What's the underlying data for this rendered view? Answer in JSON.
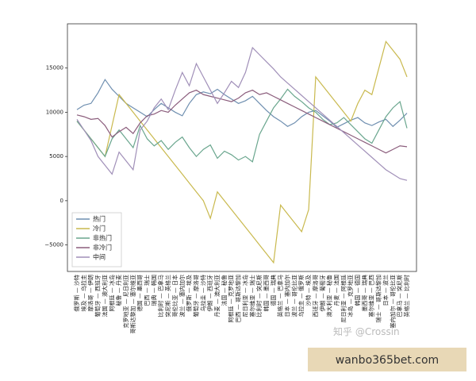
{
  "chart_data": {
    "type": "line",
    "categories": [
      "俄罗斯 — 沙特",
      "埃及 — 乌拉圭",
      "摩洛哥 — 伊朗",
      "葡萄牙 — 西班牙",
      "法国 — 澳大利亚",
      "阿根廷 — 冰岛",
      "秘鲁 — 丹麦",
      "克罗地亚 — 尼日利亚",
      "哥斯达黎加 — 塞尔维亚",
      "德国 — 墨西哥",
      "巴西 — 瑞士",
      "瑞典 — 韩国",
      "比利时 — 巴拿马",
      "突尼斯 — 英格兰",
      "哥伦比亚 — 日本",
      "波兰 — 塞内加尔",
      "俄罗斯 — 埃及",
      "葡萄牙 — 摩洛哥",
      "乌拉圭 — 沙特",
      "伊朗 — 西班牙",
      "丹麦 — 澳大利亚",
      "法国 — 秘鲁",
      "阿根廷 — 克罗地亚",
      "巴西 — 哥斯达黎加",
      "尼日利亚 — 冰岛",
      "塞尔维亚 — 瑞士",
      "比利时 — 突尼斯",
      "韩国 — 墨西哥",
      "德国 — 瑞典",
      "英格兰 — 巴拿马",
      "日本 — 塞内加尔",
      "波兰 — 哥伦比亚",
      "乌拉圭 — 俄罗斯",
      "沙特 — 埃及",
      "西班牙 — 摩洛哥",
      "伊朗 — 葡萄牙",
      "澳大利亚 — 秘鲁",
      "丹麦 — 法国",
      "尼日利亚 — 阿根廷",
      "冰岛 — 克罗地亚",
      "韩国 — 德国",
      "墨西哥 — 瑞典",
      "塞尔维亚 — 巴西",
      "瑞士 — 哥斯达黎加",
      "日本 — 波兰",
      "塞内加尔 — 哥伦比亚",
      "巴拿马 — 突尼斯",
      "英格兰 — 比利时"
    ],
    "series": [
      {
        "name": "热门",
        "color": "#6f8fb0",
        "values": [
          10300,
          10800,
          11000,
          12200,
          13700,
          12600,
          11800,
          11000,
          10500,
          10000,
          9500,
          10300,
          11000,
          10500,
          10000,
          9600,
          11000,
          12000,
          12300,
          12100,
          12600,
          12000,
          11500,
          11000,
          11300,
          11800,
          11000,
          10200,
          9500,
          9000,
          8400,
          8800,
          9500,
          10000,
          10200,
          9600,
          9000,
          8300,
          8700,
          9100,
          9400,
          8800,
          8500,
          8900,
          9200,
          8400,
          9100,
          9900
        ]
      },
      {
        "name": "冷门",
        "color": "#c9b94e",
        "values": [
          9000,
          8000,
          7000,
          6000,
          5000,
          8500,
          12000,
          11000,
          10000,
          9000,
          8000,
          7000,
          6000,
          5000,
          4000,
          3000,
          2000,
          1000,
          0,
          -2000,
          1000,
          0,
          -1000,
          -2000,
          -3000,
          -4000,
          -5000,
          -6000,
          -7000,
          -500,
          -1500,
          -2500,
          -3500,
          -1000,
          14000,
          13000,
          12000,
          11000,
          10000,
          9000,
          11000,
          12500,
          12000,
          15000,
          18000,
          17000,
          16000,
          14000
        ]
      },
      {
        "name": "非热门",
        "color": "#6aa68e",
        "values": [
          9000,
          8000,
          7000,
          6000,
          5000,
          7000,
          8000,
          7000,
          6000,
          8500,
          7000,
          6200,
          6800,
          5800,
          6600,
          7200,
          6000,
          5000,
          5800,
          6300,
          4800,
          5600,
          5200,
          4600,
          5000,
          4400,
          7500,
          9000,
          10500,
          11500,
          12600,
          11800,
          11200,
          10500,
          10000,
          9200,
          8600,
          8800,
          9400,
          8600,
          7800,
          7000,
          6500,
          8000,
          9500,
          10500,
          11200,
          8200
        ]
      },
      {
        "name": "非冷门",
        "color": "#8b5d7c",
        "values": [
          9700,
          9500,
          9200,
          9300,
          8500,
          7200,
          7800,
          8300,
          7600,
          8800,
          9600,
          9800,
          10200,
          10000,
          10800,
          11500,
          12200,
          12500,
          12000,
          11800,
          11600,
          11400,
          11200,
          11600,
          12200,
          12500,
          12000,
          12200,
          11800,
          11400,
          11000,
          10600,
          10200,
          9800,
          9400,
          9000,
          8600,
          8200,
          7800,
          7400,
          7000,
          6600,
          6200,
          5800,
          5400,
          5800,
          6200,
          6100
        ]
      },
      {
        "name": "中间",
        "color": "#a08fb8",
        "values": [
          9200,
          8000,
          6800,
          5000,
          4000,
          3000,
          5500,
          4500,
          3500,
          8000,
          9000,
          10500,
          11500,
          10300,
          12500,
          14500,
          13000,
          15500,
          14000,
          12500,
          11000,
          12200,
          13500,
          12800,
          14500,
          17300,
          16500,
          15700,
          14900,
          14000,
          13300,
          12600,
          11900,
          11200,
          10500,
          9800,
          9100,
          8400,
          7700,
          7000,
          6300,
          5600,
          4900,
          4200,
          3500,
          3000,
          2500,
          2300
        ]
      }
    ],
    "ylim": [
      -8000,
      20000
    ],
    "yticks": [
      {
        "value": -5000,
        "label": "−5000"
      },
      0,
      5000,
      10000,
      15000
    ],
    "legend": "lower left",
    "watermark": "知乎 @Crossin",
    "banner": "wanbo365bet.com"
  }
}
